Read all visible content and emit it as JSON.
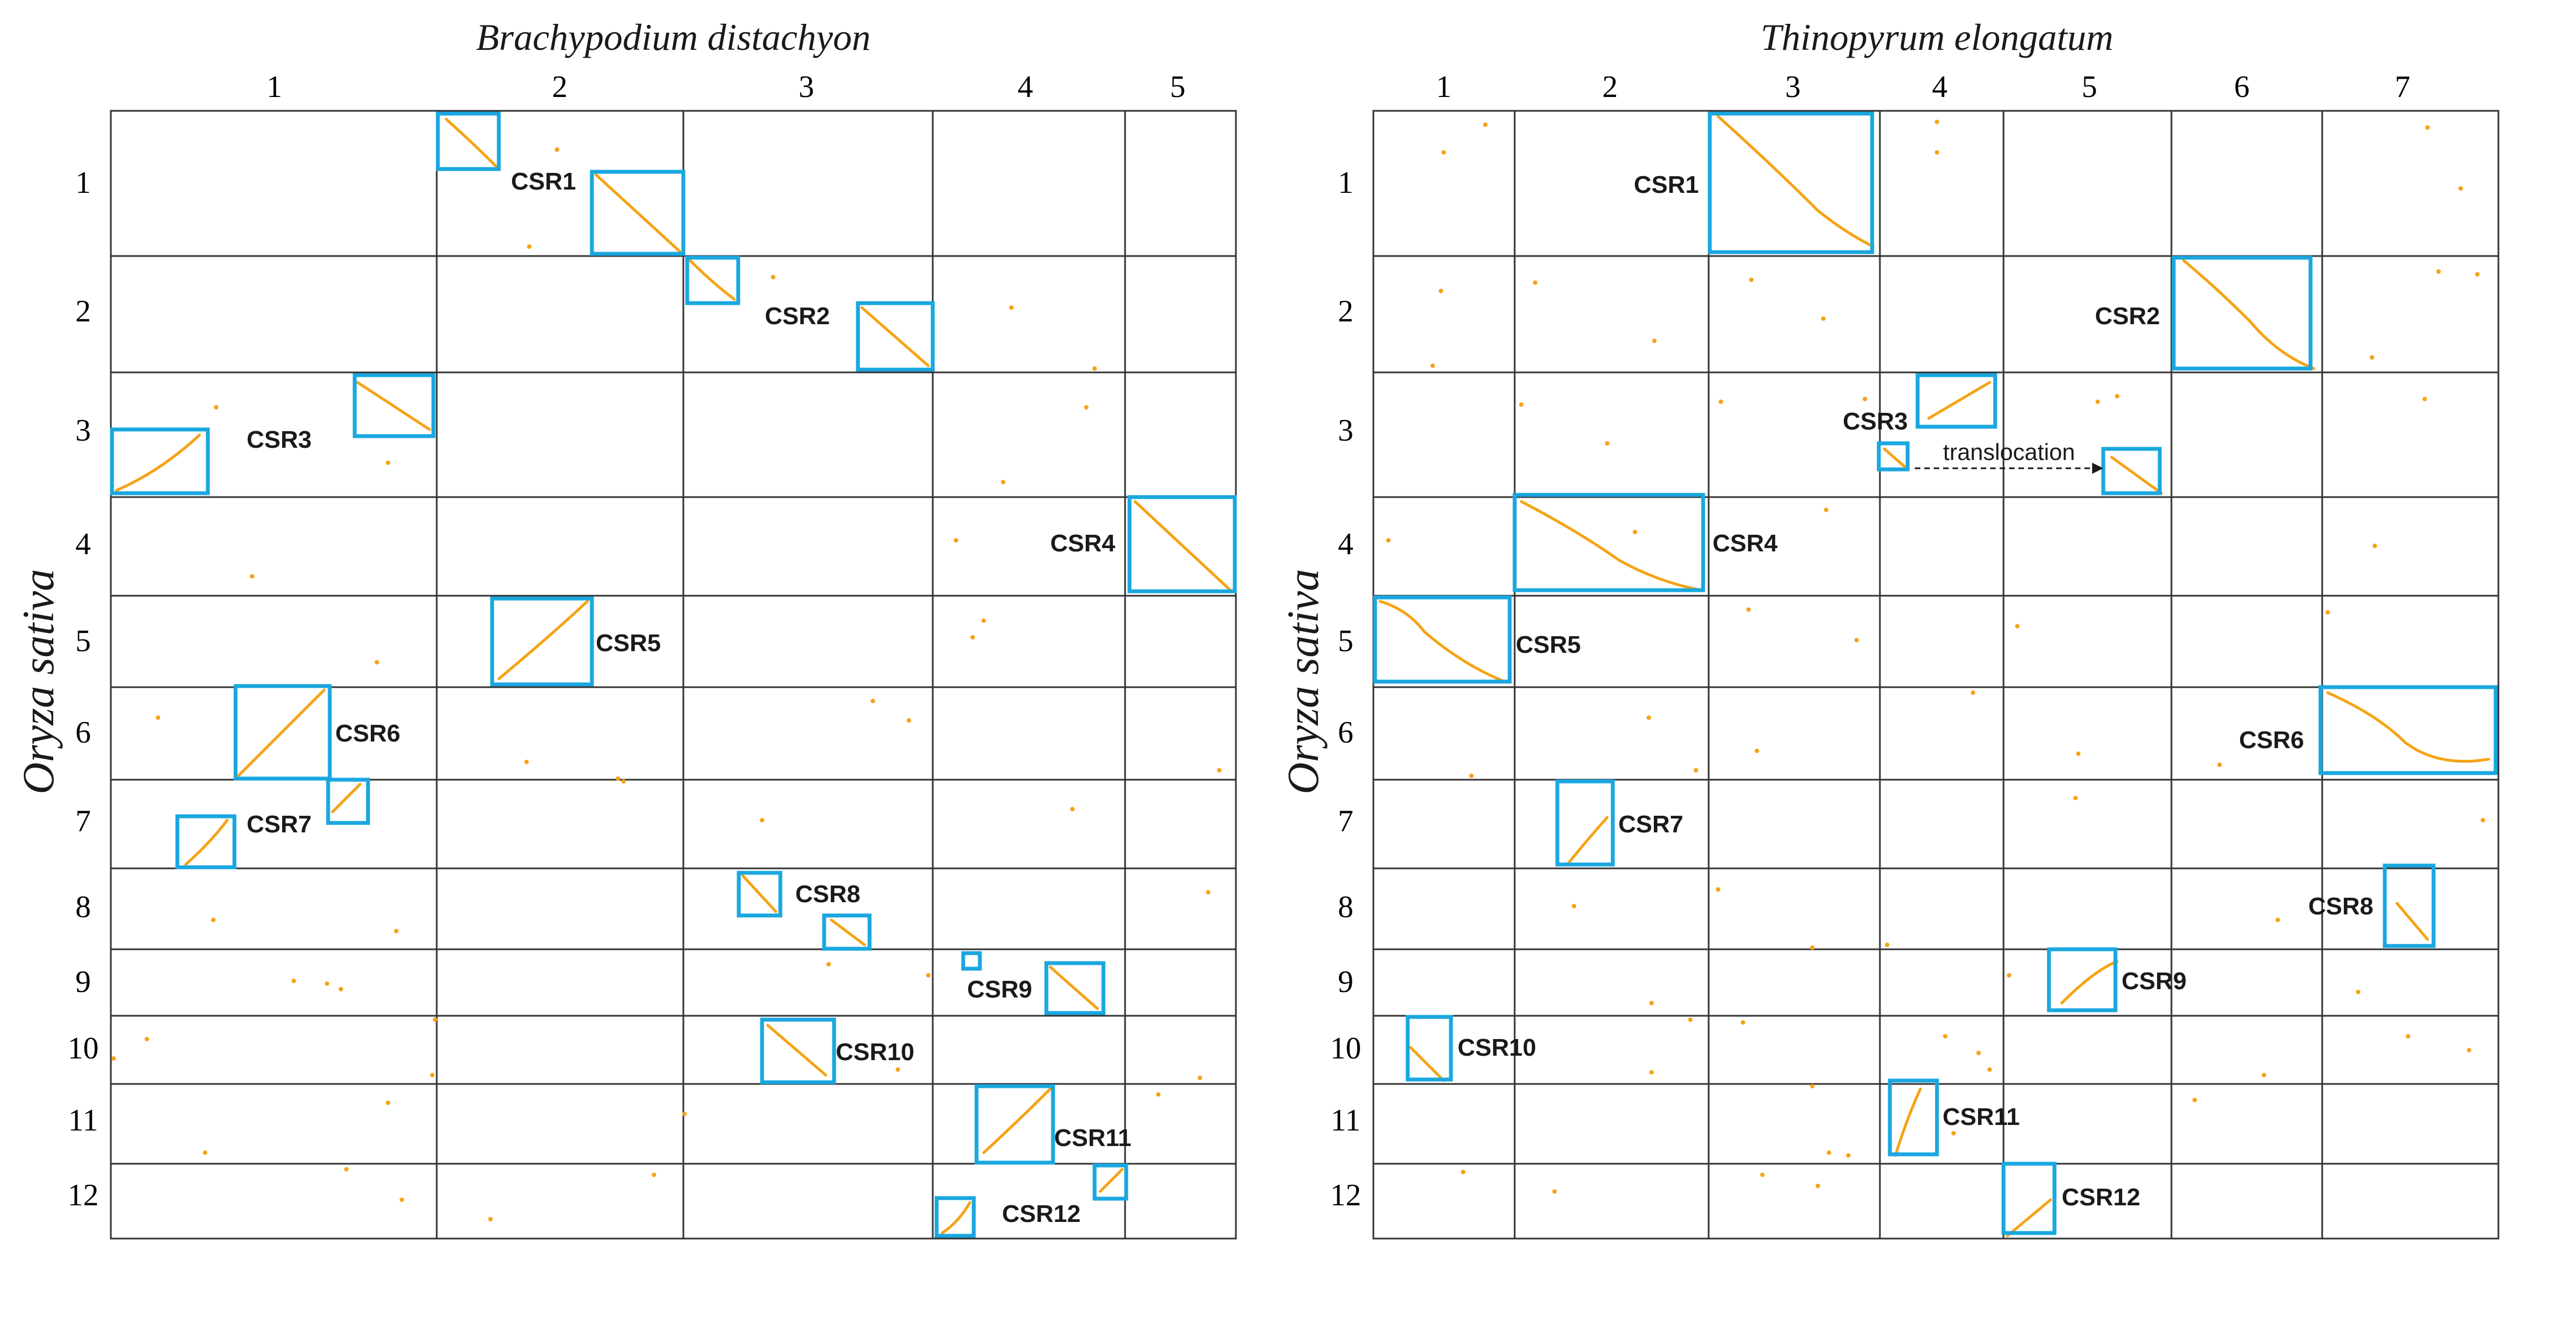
{
  "figure": {
    "y_axis_title": "Oryza sativa",
    "panels": [
      {
        "title": "Brachypodium distachyon",
        "columns": [
          "1",
          "2",
          "3",
          "4",
          "5"
        ],
        "rows": [
          "1",
          "2",
          "3",
          "4",
          "5",
          "6",
          "7",
          "8",
          "9",
          "10",
          "11",
          "12"
        ],
        "regions": [
          "CSR1",
          "CSR2",
          "CSR3",
          "CSR4",
          "CSR5",
          "CSR6",
          "CSR7",
          "CSR8",
          "CSR9",
          "CSR10",
          "CSR11",
          "CSR12"
        ]
      },
      {
        "title": "Thinopyrum elongatum",
        "columns": [
          "1",
          "2",
          "3",
          "4",
          "5",
          "6",
          "7"
        ],
        "rows": [
          "1",
          "2",
          "3",
          "4",
          "5",
          "6",
          "7",
          "8",
          "9",
          "10",
          "11",
          "12"
        ],
        "regions": [
          "CSR1",
          "CSR2",
          "CSR3",
          "CSR4",
          "CSR5",
          "CSR6",
          "CSR7",
          "CSR8",
          "CSR9",
          "CSR10",
          "CSR11",
          "CSR12"
        ],
        "annotation": "translocation"
      }
    ],
    "colors": {
      "grid": "#333333",
      "dots": "#f5a315",
      "box": "#1aa7e0",
      "text": "#1a1a1a"
    }
  }
}
